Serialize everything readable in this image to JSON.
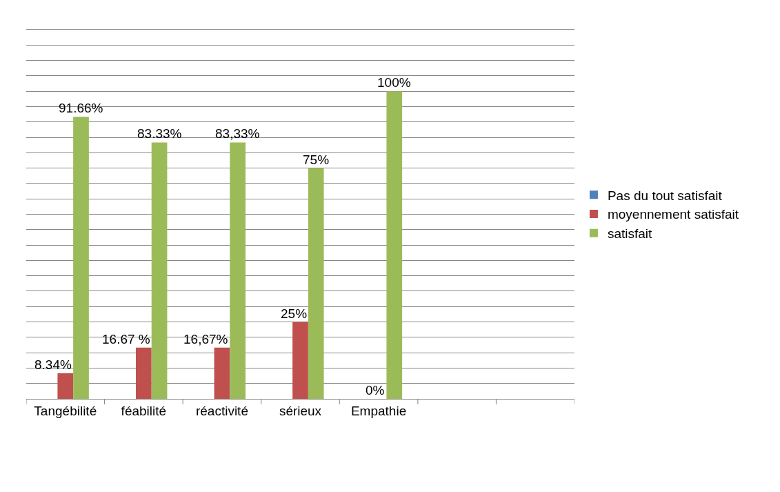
{
  "chart_data": {
    "type": "bar",
    "categories": [
      "Tangébilité",
      "féabilité",
      "réactivité",
      "sérieux",
      "Empathie",
      null,
      null
    ],
    "series": [
      {
        "name": "Pas du tout satisfait",
        "color": "#4f81bd",
        "values": [
          null,
          null,
          null,
          null,
          null,
          null,
          null
        ]
      },
      {
        "name": "moyennement satisfait",
        "color": "#c0504d",
        "values": [
          8.34,
          16.67,
          16.67,
          25,
          0,
          null,
          null
        ],
        "value_labels": [
          "8.34%",
          "16.67 %",
          "16,67%",
          "25%",
          "0%",
          null,
          null
        ]
      },
      {
        "name": "satisfait",
        "color": "#9bbb59",
        "values": [
          91.66,
          83.33,
          83.33,
          75,
          100,
          null,
          null
        ],
        "value_labels": [
          "91.66%",
          "83.33%",
          "83,33%",
          "75%",
          "100%",
          null,
          null
        ]
      }
    ],
    "ylim": [
      0,
      120
    ],
    "yticks": [
      {
        "value": 0,
        "label": null
      },
      {
        "value": 5,
        "label": null
      },
      {
        "value": 10,
        "label": null
      },
      {
        "value": 15,
        "label": null
      },
      {
        "value": 20,
        "label": null
      },
      {
        "value": 25,
        "label": null
      },
      {
        "value": 30,
        "label": null
      },
      {
        "value": 35,
        "label": null
      },
      {
        "value": 40,
        "label": null
      },
      {
        "value": 45,
        "label": null
      },
      {
        "value": 50,
        "label": null
      },
      {
        "value": 55,
        "label": null
      },
      {
        "value": 60,
        "label": null
      },
      {
        "value": 65,
        "label": null
      },
      {
        "value": 70,
        "label": null
      },
      {
        "value": 75,
        "label": null
      },
      {
        "value": 80,
        "label": null
      },
      {
        "value": 85,
        "label": null
      },
      {
        "value": 90,
        "label": null
      },
      {
        "value": 95,
        "label": null
      },
      {
        "value": 100,
        "label": null
      },
      {
        "value": 105,
        "label": null
      },
      {
        "value": 110,
        "label": null
      },
      {
        "value": 115,
        "label": null
      },
      {
        "value": 120,
        "label": null
      }
    ],
    "tick_labels": "x",
    "grid": "y",
    "legend": "right"
  }
}
